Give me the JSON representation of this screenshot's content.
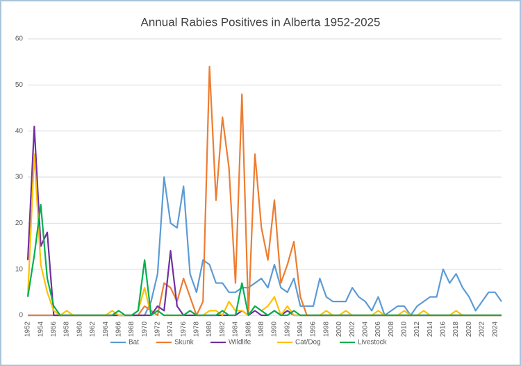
{
  "chart_data": {
    "type": "line",
    "title": "Annual Rabies Positives in Alberta 1952-2025",
    "categories": [
      "1952",
      null,
      "1954",
      null,
      "1956",
      null,
      "1958",
      null,
      "1960",
      null,
      "1962",
      null,
      "1964",
      null,
      "1966",
      null,
      "1968",
      null,
      "1970",
      null,
      "1972",
      null,
      "1974",
      null,
      "1976",
      null,
      "1978",
      null,
      "1980",
      null,
      "1982",
      null,
      "1984",
      null,
      "1986",
      null,
      "1988",
      null,
      "1990",
      null,
      "1992",
      null,
      "1994",
      null,
      "1996",
      null,
      "1998",
      null,
      "2000",
      null,
      "2002",
      null,
      "2004",
      null,
      "2006",
      null,
      "2008",
      null,
      "2010",
      null,
      "2012",
      null,
      "2014",
      null,
      "2016",
      null,
      "2018",
      null,
      "2020",
      null,
      "2022",
      null,
      "2024",
      null
    ],
    "series": [
      {
        "name": "Bat",
        "color": "#5b9bd5",
        "values": [
          0,
          0,
          0,
          0,
          0,
          0,
          0,
          0,
          0,
          0,
          0,
          0,
          0,
          0,
          0,
          0,
          0,
          0,
          0,
          3,
          9,
          30,
          20,
          19,
          28,
          9,
          5,
          12,
          11,
          7,
          7,
          5,
          5,
          6,
          6,
          7,
          8,
          6,
          11,
          6,
          5,
          8,
          2,
          2,
          2,
          8,
          4,
          3,
          3,
          3,
          6,
          4,
          3,
          1,
          4,
          0,
          1,
          2,
          2,
          0,
          2,
          3,
          4,
          4,
          10,
          7,
          9,
          6,
          4,
          1,
          3,
          5,
          5,
          3
        ]
      },
      {
        "name": "Skunk",
        "color": "#ed7d31",
        "values": [
          0,
          0,
          0,
          0,
          0,
          0,
          0,
          0,
          0,
          0,
          0,
          0,
          0,
          0,
          0,
          0,
          0,
          0,
          2,
          1,
          0,
          7,
          6,
          3,
          8,
          4,
          0,
          3,
          54,
          25,
          43,
          32,
          7,
          48,
          0,
          35,
          19,
          12,
          25,
          7,
          11,
          16,
          4,
          0,
          0,
          0,
          0,
          0,
          0,
          0,
          0,
          0,
          0,
          0,
          0,
          0,
          0,
          0,
          0,
          0,
          0,
          0,
          0,
          0,
          0,
          0,
          0,
          0,
          0,
          0,
          0,
          0,
          0,
          0
        ]
      },
      {
        "name": "Wildlife",
        "color": "#7030a0",
        "values": [
          12,
          41,
          15,
          18,
          0,
          0,
          0,
          0,
          0,
          0,
          0,
          0,
          0,
          0,
          0,
          0,
          0,
          0,
          0,
          0,
          2,
          1,
          14,
          2,
          0,
          0,
          0,
          0,
          0,
          0,
          0,
          0,
          0,
          1,
          0,
          1,
          0,
          0,
          1,
          0,
          1,
          0,
          0,
          0,
          0,
          0,
          0,
          0,
          0,
          0,
          0,
          0,
          0,
          0,
          0,
          0,
          0,
          0,
          0,
          0,
          0,
          0,
          0,
          0,
          0,
          0,
          0,
          0,
          0,
          0,
          0,
          0,
          0,
          0
        ]
      },
      {
        "name": "Cat/Dog",
        "color": "#ffc000",
        "values": [
          4,
          35,
          11,
          5,
          1,
          0,
          1,
          0,
          0,
          0,
          0,
          0,
          0,
          1,
          0,
          0,
          0,
          1,
          6,
          0,
          1,
          0,
          0,
          0,
          0,
          1,
          0,
          0,
          1,
          1,
          0,
          3,
          1,
          1,
          0,
          2,
          1,
          2,
          4,
          0,
          2,
          0,
          0,
          0,
          0,
          0,
          1,
          0,
          0,
          1,
          0,
          0,
          0,
          0,
          1,
          0,
          0,
          0,
          1,
          0,
          0,
          1,
          0,
          0,
          0,
          0,
          1,
          0,
          0,
          0,
          0,
          0,
          0,
          0
        ]
      },
      {
        "name": "Livestock",
        "color": "#00b050",
        "values": [
          4,
          13,
          24,
          8,
          2,
          0,
          0,
          0,
          0,
          0,
          0,
          0,
          0,
          0,
          1,
          0,
          0,
          1,
          12,
          0,
          1,
          0,
          0,
          0,
          0,
          1,
          0,
          0,
          0,
          0,
          1,
          0,
          0,
          7,
          0,
          2,
          1,
          0,
          1,
          0,
          0,
          1,
          0,
          0,
          0,
          0,
          0,
          0,
          0,
          0,
          0,
          0,
          0,
          0,
          0,
          0,
          0,
          0,
          0,
          0,
          0,
          0,
          0,
          0,
          0,
          0,
          0,
          0,
          0,
          0,
          0,
          0,
          0,
          0
        ]
      }
    ],
    "ylim": [
      0,
      60
    ],
    "yticks": [
      0,
      10,
      20,
      30,
      40,
      50,
      60
    ],
    "grid": true,
    "legend": "bottom"
  }
}
